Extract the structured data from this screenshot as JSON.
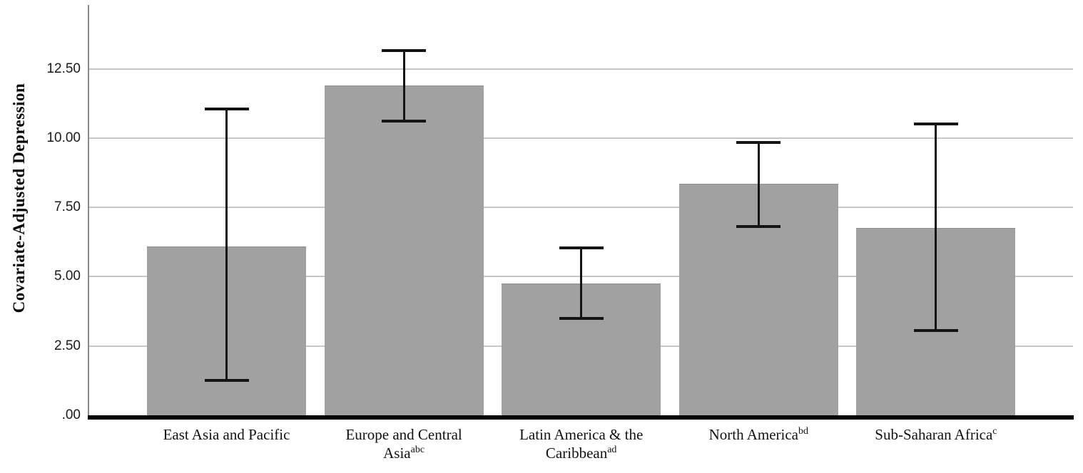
{
  "chart_data": {
    "type": "bar",
    "title": "",
    "ylabel": "Covariate-Adjusted Depression",
    "xlabel": "",
    "ylim": [
      0,
      14.8
    ],
    "grid": true,
    "legend_position": "none",
    "yticks": [
      {
        "label": ".00",
        "value": 0
      },
      {
        "label": "2.50",
        "value": 2.5
      },
      {
        "label": "5.00",
        "value": 5
      },
      {
        "label": "7.50",
        "value": 7.5
      },
      {
        "label": "10.00",
        "value": 10
      },
      {
        "label": "12.50",
        "value": 12.5
      }
    ],
    "categories": [
      "East Asia and Pacific",
      "Europe and Central Asia",
      "Latin America & the Caribbean",
      "North America",
      "Sub-Saharan Africa"
    ],
    "category_superscripts": [
      "",
      "abc",
      "ad",
      "bd",
      "c"
    ],
    "series": [
      {
        "name": "Covariate-Adjusted Depression",
        "values": [
          6.1,
          11.9,
          4.75,
          8.35,
          6.75
        ],
        "error_low": [
          1.2,
          10.55,
          3.45,
          6.75,
          3.0
        ],
        "error_high": [
          11.1,
          13.2,
          6.1,
          9.9,
          10.55
        ]
      }
    ],
    "colors": {
      "bar_fill": "#a1a1a1",
      "bar_edge": "#8e8e8e",
      "gridline": "#c6c6c6",
      "axis_spine": "#8a8a8a",
      "baseline": "#000000",
      "error_bar": "#141414",
      "tick_text": "#1a1a1a",
      "label_text": "#111111"
    }
  }
}
